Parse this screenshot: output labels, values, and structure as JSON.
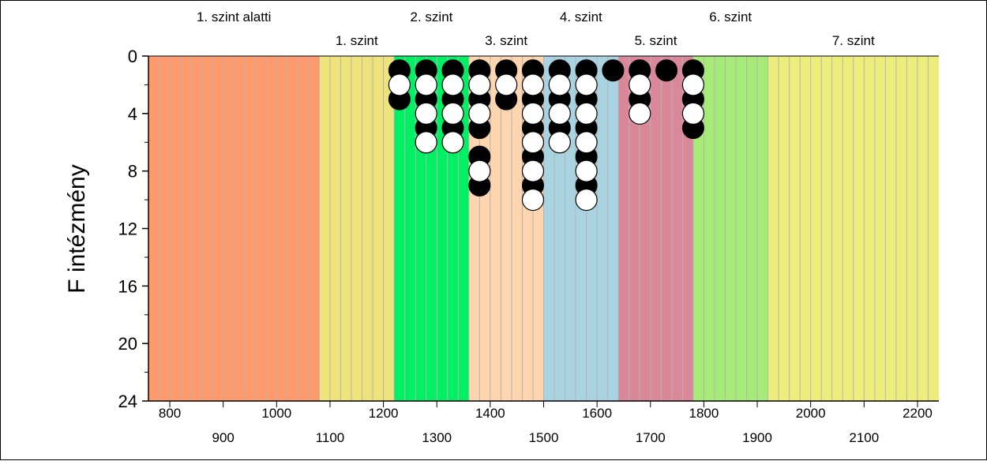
{
  "chart_data": {
    "type": "scatter",
    "xlim": [
      760,
      2240
    ],
    "ylim": [
      0,
      24
    ],
    "y_inverted": true,
    "ylabel": "F intézmény",
    "y_ticks": [
      0,
      4,
      8,
      12,
      16,
      20,
      24
    ],
    "x_ticks_top_row": [
      800,
      1000,
      1200,
      1400,
      1600,
      1800,
      2000,
      2200
    ],
    "x_ticks_bottom_row": [
      900,
      1100,
      1300,
      1500,
      1700,
      1900,
      2100
    ],
    "bands": [
      {
        "label": "1. szint alatti",
        "from": 760,
        "to": 1080,
        "color": "#FF9A6C",
        "label_row": "top"
      },
      {
        "label": "1. szint",
        "from": 1080,
        "to": 1220,
        "color": "#EEE27A",
        "label_row": "bottom"
      },
      {
        "label": "2. szint",
        "from": 1220,
        "to": 1360,
        "color": "#00F064",
        "label_row": "top"
      },
      {
        "label": "3. szint",
        "from": 1360,
        "to": 1500,
        "color": "#FDD5AE",
        "label_row": "bottom"
      },
      {
        "label": "4. szint",
        "from": 1500,
        "to": 1640,
        "color": "#A9D3E0",
        "label_row": "top"
      },
      {
        "label": "5. szint",
        "from": 1640,
        "to": 1780,
        "color": "#D98799",
        "label_row": "bottom"
      },
      {
        "label": "6. szint",
        "from": 1780,
        "to": 1920,
        "color": "#A6EA77",
        "label_row": "top"
      },
      {
        "label": "7. szint",
        "from": 1920,
        "to": 2240,
        "color": "#EDED7C",
        "label_row": "bottom"
      }
    ],
    "series": [
      {
        "x": 1230,
        "y": [
          1,
          3
        ]
      },
      {
        "x": 1280,
        "y": [
          1,
          3,
          5
        ]
      },
      {
        "x": 1330,
        "y": [
          1,
          3,
          5
        ]
      },
      {
        "x": 1380,
        "y": [
          1,
          3,
          5,
          7,
          9
        ]
      },
      {
        "x": 1430,
        "y": [
          1,
          3
        ]
      },
      {
        "x": 1480,
        "y": [
          1,
          3,
          5,
          7,
          9
        ]
      },
      {
        "x": 1530,
        "y": [
          1,
          3,
          5
        ]
      },
      {
        "x": 1580,
        "y": [
          1,
          3,
          5,
          7,
          9
        ]
      },
      {
        "x": 1630,
        "y": [
          1
        ]
      },
      {
        "x": 1680,
        "y": [
          1,
          3
        ]
      },
      {
        "x": 1730,
        "y": [
          1
        ]
      },
      {
        "x": 1780,
        "y": [
          1,
          3,
          5
        ]
      }
    ],
    "open_points": [
      {
        "x": 1230,
        "y": [
          2
        ]
      },
      {
        "x": 1280,
        "y": [
          2,
          4,
          6
        ]
      },
      {
        "x": 1330,
        "y": [
          2,
          4,
          6
        ]
      },
      {
        "x": 1380,
        "y": [
          2,
          4,
          8
        ]
      },
      {
        "x": 1430,
        "y": [
          2
        ]
      },
      {
        "x": 1480,
        "y": [
          2,
          4,
          6,
          8,
          10
        ]
      },
      {
        "x": 1530,
        "y": [
          2,
          4,
          6
        ]
      },
      {
        "x": 1580,
        "y": [
          2,
          4,
          6,
          8,
          10
        ]
      },
      {
        "x": 1680,
        "y": [
          2,
          4
        ]
      },
      {
        "x": 1780,
        "y": [
          2,
          4
        ]
      }
    ],
    "colors": {
      "filled": "#000000",
      "open": "#FFFFFF",
      "grid": "#B4B4B4"
    }
  }
}
